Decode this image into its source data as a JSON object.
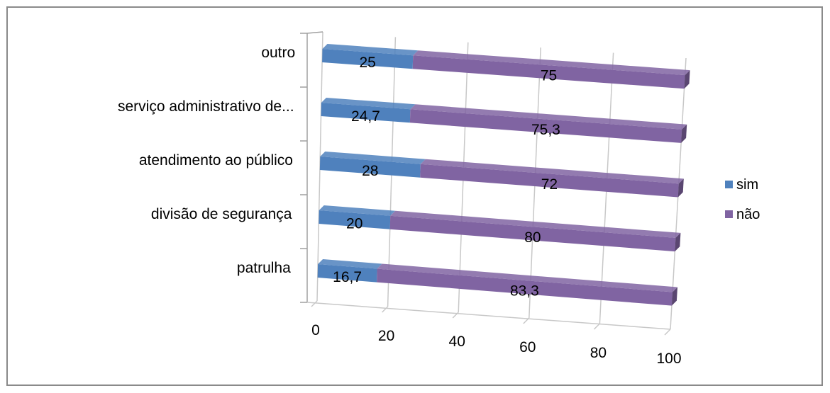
{
  "chart_data": {
    "type": "bar",
    "orientation": "horizontal",
    "stacked": true,
    "perspective": "3d",
    "categories": [
      "patrulha",
      "divisão de segurança",
      "atendimento ao público",
      "serviço administrativo de...",
      "outro"
    ],
    "series": [
      {
        "name": "sim",
        "values": [
          16.7,
          20,
          28,
          24.7,
          25
        ],
        "labels": [
          "16,7",
          "20",
          "28",
          "24,7",
          "25"
        ],
        "color": "#4f81bd"
      },
      {
        "name": "não",
        "values": [
          83.3,
          80,
          72,
          75.3,
          75
        ],
        "labels": [
          "83,3",
          "80",
          "72",
          "75,3",
          "75"
        ],
        "color": "#8064a2"
      }
    ],
    "xticks": [
      0,
      20,
      40,
      60,
      80,
      100
    ],
    "xlim": [
      0,
      100
    ],
    "grid": true,
    "legend_position": "right"
  }
}
